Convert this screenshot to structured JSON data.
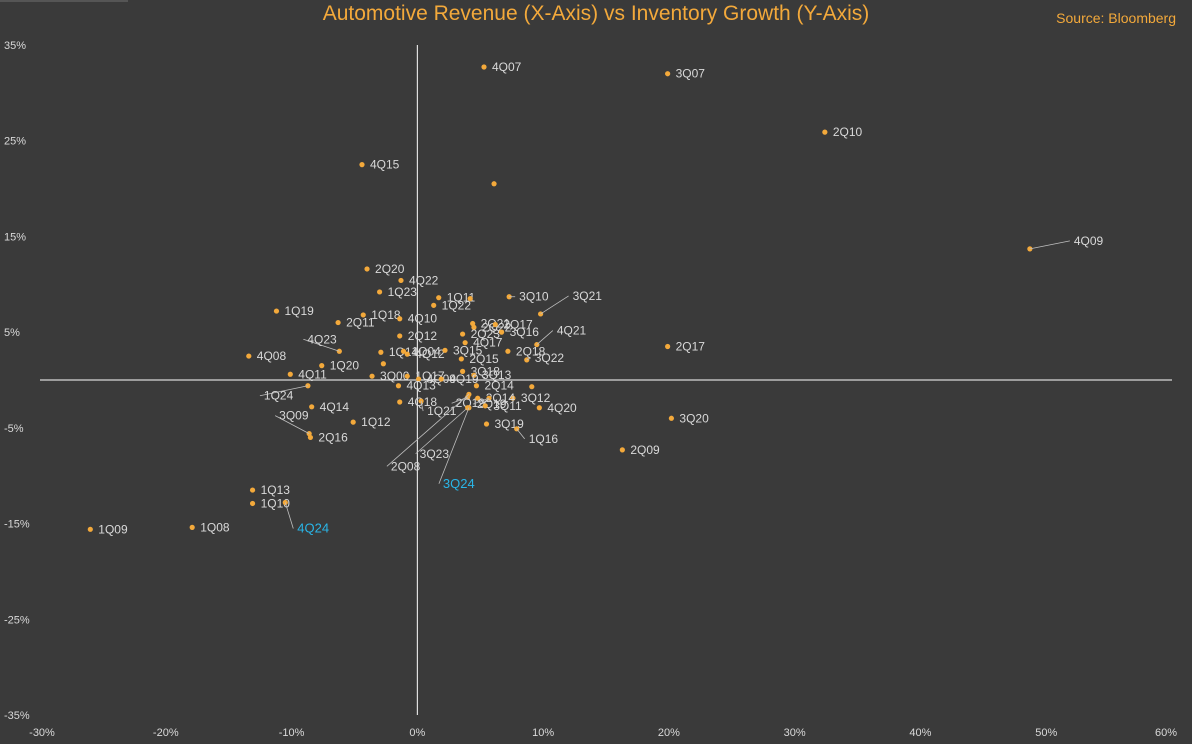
{
  "header": {
    "title": "Automotive Revenue (X-Axis) vs Inventory Growth (Y-Axis)",
    "source": "Source: Bloomberg"
  },
  "colors": {
    "background": "#3a3a3a",
    "point": "#f3a93b",
    "highlight": "#29b6e8",
    "text": "#d9d9d9",
    "axis": "#ffffff"
  },
  "chart_data": {
    "type": "scatter",
    "title": "Automotive Revenue (X-Axis) vs Inventory Growth (Y-Axis)",
    "xlabel": "",
    "ylabel": "",
    "xlim": [
      -0.3,
      0.6
    ],
    "ylim": [
      -0.35,
      0.35
    ],
    "x_ticks": [
      "-30%",
      "-20%",
      "-10%",
      "0%",
      "10%",
      "20%",
      "30%",
      "40%",
      "50%",
      "60%"
    ],
    "y_ticks": [
      "35%",
      "25%",
      "15%",
      "5%",
      "-5%",
      "-15%",
      "-25%",
      "-35%"
    ],
    "grid": false,
    "highlighted": [
      "4Q24",
      "3Q24"
    ],
    "points": [
      {
        "label": "4Q07",
        "x": 0.053,
        "y": 0.327
      },
      {
        "label": "3Q07",
        "x": 0.199,
        "y": 0.32
      },
      {
        "label": "2Q10",
        "x": 0.324,
        "y": 0.259
      },
      {
        "label": "4Q15",
        "x": -0.044,
        "y": 0.225
      },
      {
        "label": "",
        "x": 0.061,
        "y": 0.205
      },
      {
        "label": "4Q09",
        "x": 0.487,
        "y": 0.137
      },
      {
        "label": "2Q20",
        "x": -0.04,
        "y": 0.116
      },
      {
        "label": "4Q22",
        "x": -0.013,
        "y": 0.104
      },
      {
        "label": "1Q23",
        "x": -0.03,
        "y": 0.092
      },
      {
        "label": "1Q11",
        "x": 0.017,
        "y": 0.086
      },
      {
        "label": "1Q22",
        "x": 0.013,
        "y": 0.078
      },
      {
        "label": "",
        "x": 0.042,
        "y": 0.085
      },
      {
        "label": "3Q10",
        "x": 0.073,
        "y": 0.087
      },
      {
        "label": "3Q21",
        "x": 0.098,
        "y": 0.069
      },
      {
        "label": "1Q19",
        "x": -0.112,
        "y": 0.072
      },
      {
        "label": "1Q18",
        "x": -0.043,
        "y": 0.068
      },
      {
        "label": "4Q10",
        "x": -0.014,
        "y": 0.064
      },
      {
        "label": "2Q11",
        "x": -0.063,
        "y": 0.06
      },
      {
        "label": "2Q21",
        "x": 0.044,
        "y": 0.059
      },
      {
        "label": "2Q22",
        "x": 0.045,
        "y": 0.055
      },
      {
        "label": "2Q17",
        "x": 0.062,
        "y": 0.058
      },
      {
        "label": "2Q23",
        "x": 0.036,
        "y": 0.048
      },
      {
        "label": "3Q16",
        "x": 0.067,
        "y": 0.05
      },
      {
        "label": "4Q23",
        "x": -0.062,
        "y": 0.03
      },
      {
        "label": "2Q12",
        "x": -0.014,
        "y": 0.046
      },
      {
        "label": "4Q21",
        "x": 0.095,
        "y": 0.037
      },
      {
        "label": "4Q17",
        "x": 0.038,
        "y": 0.039
      },
      {
        "label": "2Q17",
        "x": 0.199,
        "y": 0.035
      },
      {
        "label": "4Q08",
        "x": -0.134,
        "y": 0.025
      },
      {
        "label": "1Q14",
        "x": -0.029,
        "y": 0.029
      },
      {
        "label": "1Q04",
        "x": -0.011,
        "y": 0.03
      },
      {
        "label": "4Q12",
        "x": -0.008,
        "y": 0.027
      },
      {
        "label": "3Q15",
        "x": 0.022,
        "y": 0.031
      },
      {
        "label": "2Q18",
        "x": 0.072,
        "y": 0.03
      },
      {
        "label": "2Q15",
        "x": 0.035,
        "y": 0.022
      },
      {
        "label": "3Q22",
        "x": 0.087,
        "y": 0.021
      },
      {
        "label": "1Q20",
        "x": -0.076,
        "y": 0.015
      },
      {
        "label": "",
        "x": -0.027,
        "y": 0.017
      },
      {
        "label": "4Q11",
        "x": -0.101,
        "y": 0.006
      },
      {
        "label": "3Q18",
        "x": 0.036,
        "y": 0.009
      },
      {
        "label": "3Q13",
        "x": 0.045,
        "y": 0.005
      },
      {
        "label": "3Q00",
        "x": -0.036,
        "y": 0.004
      },
      {
        "label": "1Q17",
        "x": -0.008,
        "y": 0.004
      },
      {
        "label": "4Q09",
        "x": 0.001,
        "y": 0.001
      },
      {
        "label": "4Q19",
        "x": 0.019,
        "y": 0.001
      },
      {
        "label": "1Q24",
        "x": -0.087,
        "y": -0.006
      },
      {
        "label": "4Q13",
        "x": -0.015,
        "y": -0.006
      },
      {
        "label": "2Q14",
        "x": 0.047,
        "y": -0.006
      },
      {
        "label": "3Q12",
        "x": 0.076,
        "y": -0.019
      },
      {
        "label": "",
        "x": 0.091,
        "y": -0.007
      },
      {
        "label": "4Q14",
        "x": -0.084,
        "y": -0.028
      },
      {
        "label": "4Q18",
        "x": -0.014,
        "y": -0.023
      },
      {
        "label": "2Q19",
        "x": 0.04,
        "y": -0.018
      },
      {
        "label": "2Q14",
        "x": 0.048,
        "y": -0.019
      },
      {
        "label": "2Q19",
        "x": 0.057,
        "y": -0.019
      },
      {
        "label": "1Q21",
        "x": 0.003,
        "y": -0.022
      },
      {
        "label": "3Q11",
        "x": 0.054,
        "y": -0.027
      },
      {
        "label": "4Q20",
        "x": 0.097,
        "y": -0.029
      },
      {
        "label": "1Q12",
        "x": -0.051,
        "y": -0.044
      },
      {
        "label": "3Q19",
        "x": 0.055,
        "y": -0.046
      },
      {
        "label": "3Q20",
        "x": 0.202,
        "y": -0.04
      },
      {
        "label": "3Q09",
        "x": -0.086,
        "y": -0.056
      },
      {
        "label": "2Q16",
        "x": -0.085,
        "y": -0.06
      },
      {
        "label": "1Q16",
        "x": 0.079,
        "y": -0.051
      },
      {
        "label": "3Q23",
        "x": 0.04,
        "y": -0.029
      },
      {
        "label": "2Q08",
        "x": 0.041,
        "y": -0.015
      },
      {
        "label": "3Q24",
        "x": 0.041,
        "y": -0.029
      },
      {
        "label": "2Q09",
        "x": 0.163,
        "y": -0.073
      },
      {
        "label": "1Q13",
        "x": -0.131,
        "y": -0.115
      },
      {
        "label": "1Q10",
        "x": -0.131,
        "y": -0.129
      },
      {
        "label": "4Q24",
        "x": -0.105,
        "y": -0.128
      },
      {
        "label": "1Q09",
        "x": -0.26,
        "y": -0.156
      },
      {
        "label": "1Q08",
        "x": -0.179,
        "y": -0.154
      }
    ]
  }
}
